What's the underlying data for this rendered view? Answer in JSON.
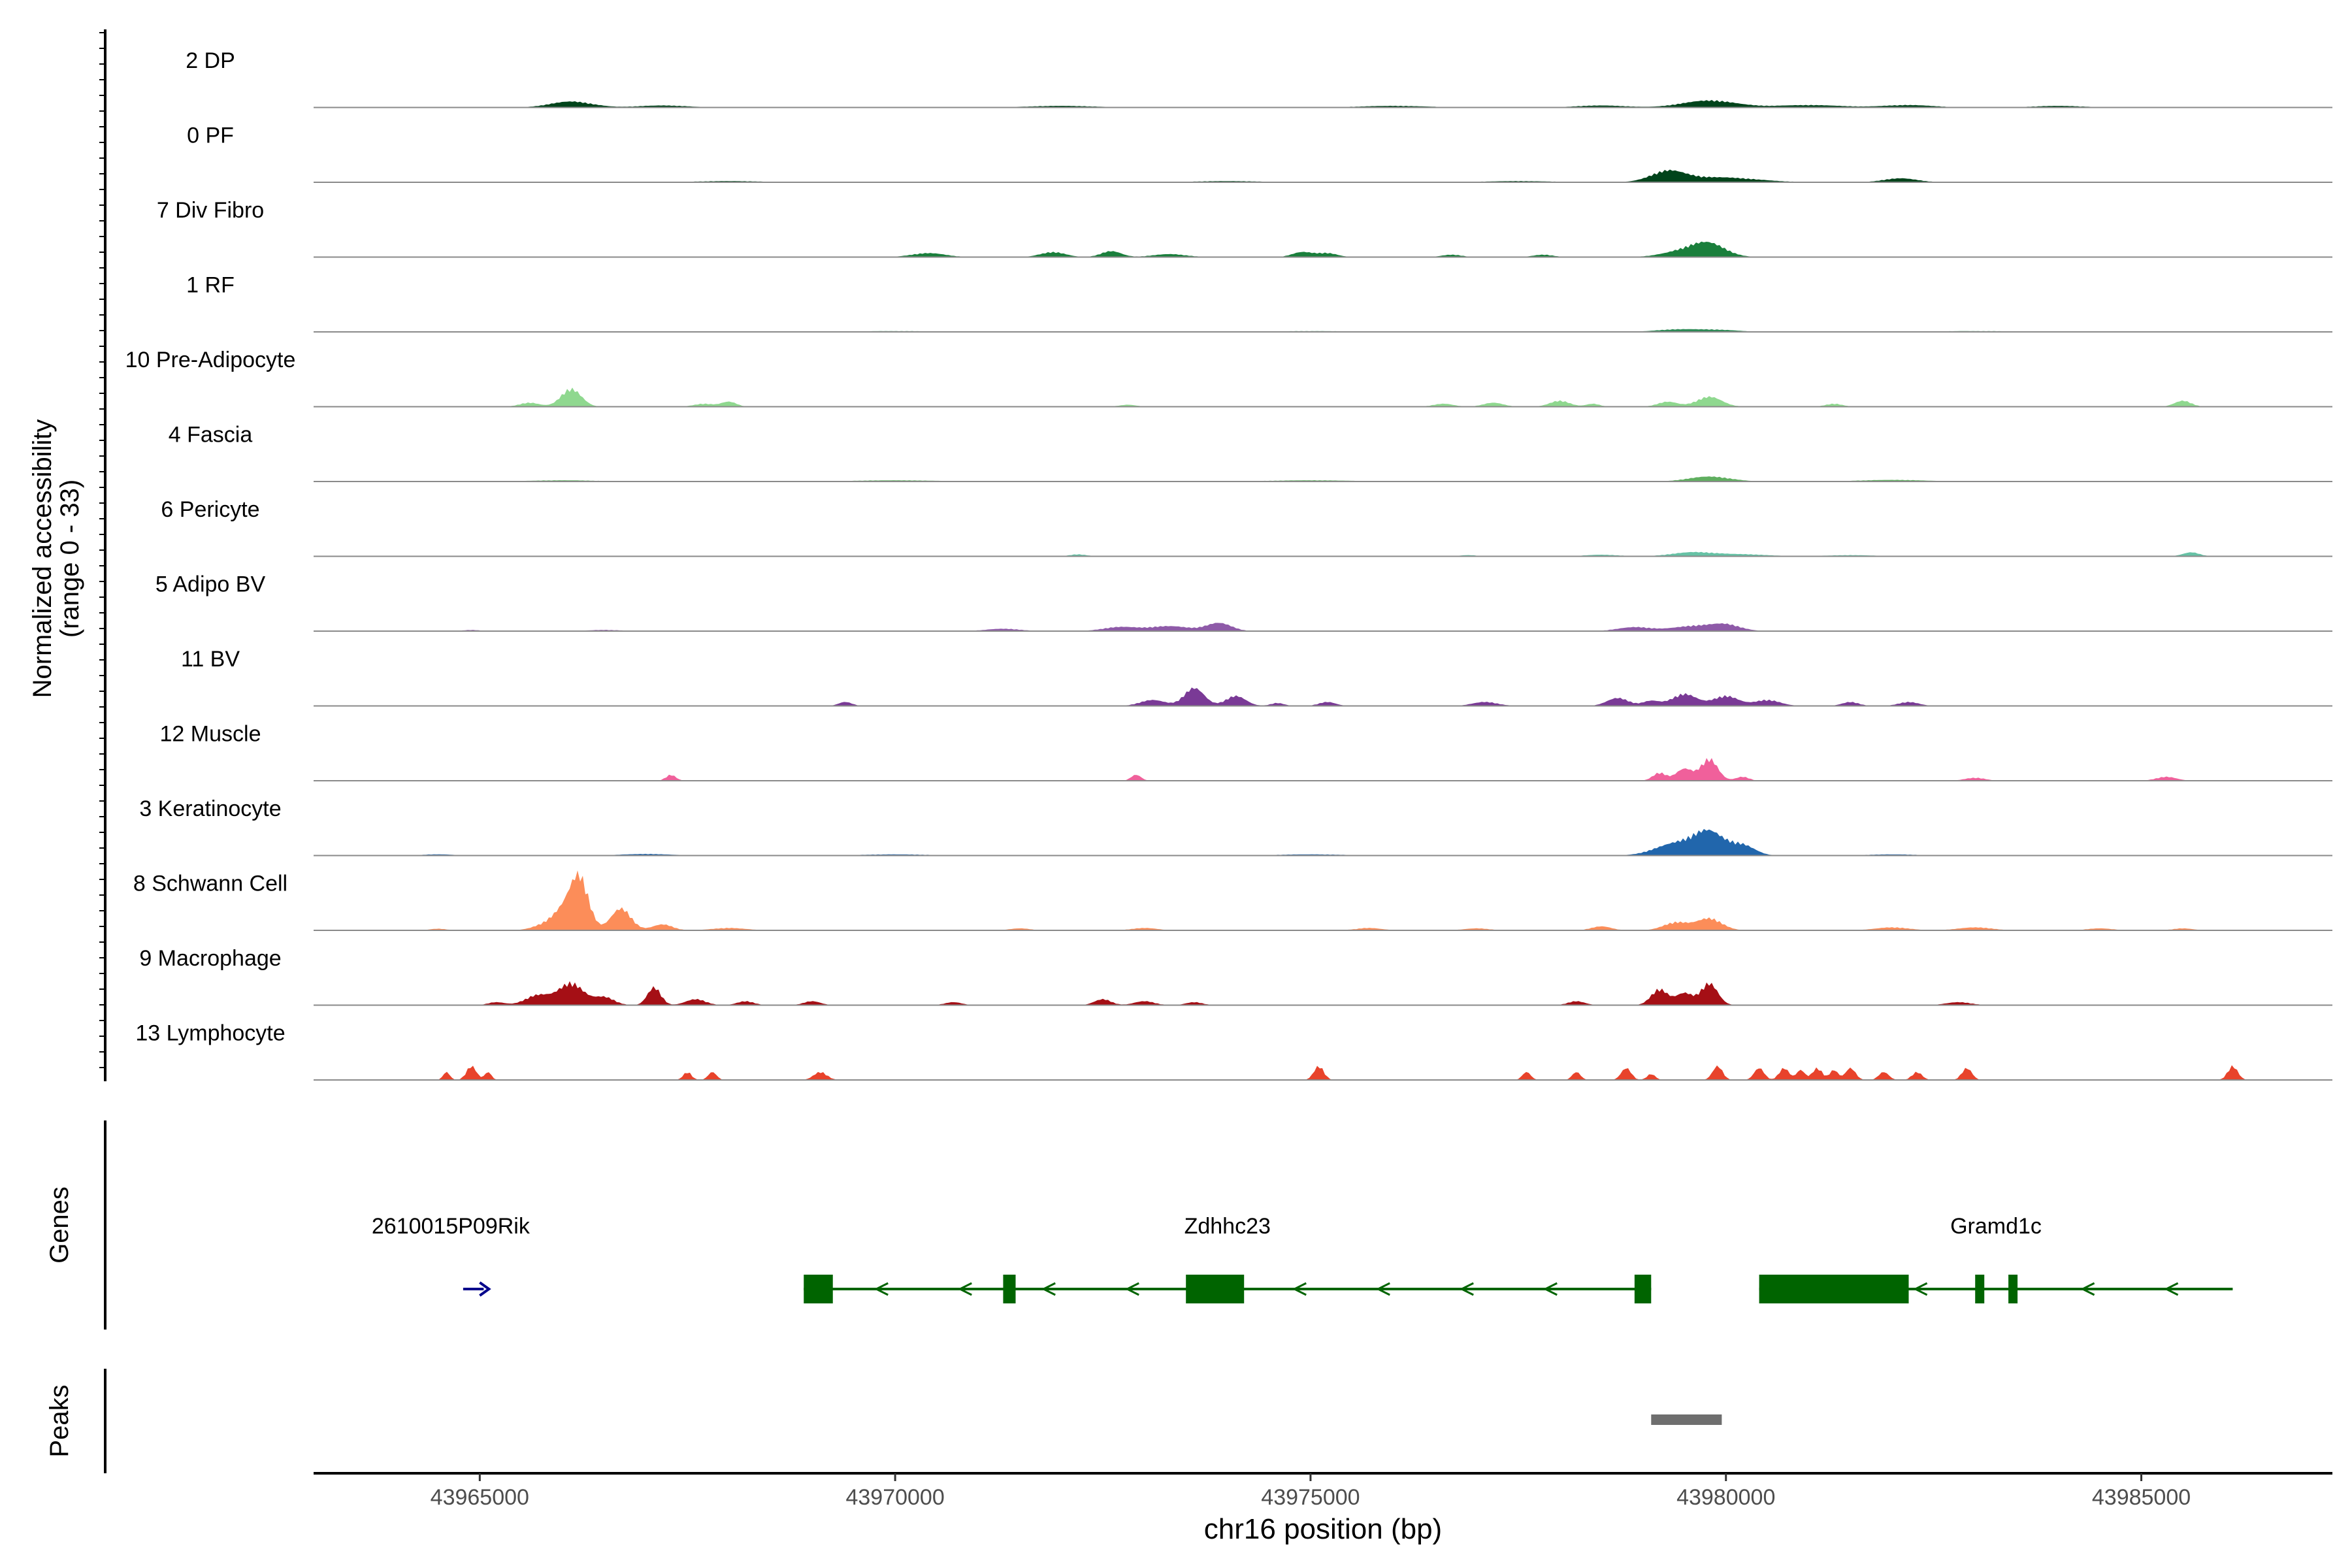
{
  "chart_data": {
    "type": "area",
    "chromosome": "chr16",
    "xlabel": "chr16 position (bp)",
    "xlim": [
      43963000,
      43987300
    ],
    "xticks": [
      43965000,
      43970000,
      43975000,
      43980000,
      43985000
    ],
    "xtick_labels": [
      "43965000",
      "43970000",
      "43975000",
      "43980000",
      "43985000"
    ],
    "ylabel_line1": "Normalized accessibility",
    "ylabel_line2": "(range 0 - 33)",
    "ylim": [
      0,
      33
    ],
    "tracks": [
      {
        "name": "2 DP",
        "color": "#00441b",
        "peaks": [
          [
            43966100,
            3,
            250
          ],
          [
            43979800,
            3.5,
            320
          ],
          [
            43967200,
            1,
            300
          ],
          [
            43972000,
            0.8,
            400
          ],
          [
            43976000,
            0.8,
            400
          ],
          [
            43978500,
            1,
            300
          ],
          [
            43981000,
            1.2,
            400
          ],
          [
            43982200,
            1.2,
            300
          ],
          [
            43984000,
            0.8,
            300
          ]
        ]
      },
      {
        "name": "0 PF",
        "color": "#00441b",
        "peaks": [
          [
            43979300,
            5,
            200
          ],
          [
            43979900,
            2.5,
            450
          ],
          [
            43982100,
            2,
            200
          ],
          [
            43968000,
            0.6,
            400
          ],
          [
            43974000,
            0.6,
            400
          ],
          [
            43977500,
            0.6,
            400
          ]
        ]
      },
      {
        "name": "7 Div Fibro",
        "color": "#1a7f3c",
        "peaks": [
          [
            43979800,
            6,
            200
          ],
          [
            43979500,
            3,
            250
          ],
          [
            43972600,
            3,
            120
          ],
          [
            43971900,
            2.5,
            150
          ],
          [
            43974900,
            2.5,
            120
          ],
          [
            43975200,
            2,
            120
          ],
          [
            43970400,
            2,
            200
          ],
          [
            43973300,
            1.5,
            200
          ],
          [
            43976700,
            1.2,
            120
          ],
          [
            43977800,
            1.2,
            120
          ]
        ]
      },
      {
        "name": "1 RF",
        "color": "#2e8b57",
        "peaks": [
          [
            43979400,
            1.2,
            250
          ],
          [
            43979900,
            1,
            250
          ],
          [
            43970000,
            0.4,
            500
          ],
          [
            43975000,
            0.4,
            500
          ],
          [
            43983000,
            0.4,
            500
          ]
        ]
      },
      {
        "name": "10 Pre-Adipocyte",
        "color": "#8fd88f",
        "peaks": [
          [
            43966100,
            9,
            120
          ],
          [
            43965600,
            2,
            120
          ],
          [
            43968000,
            2.5,
            90
          ],
          [
            43967700,
            1.5,
            120
          ],
          [
            43979800,
            5,
            150
          ],
          [
            43978000,
            3,
            120
          ],
          [
            43979300,
            2.5,
            120
          ],
          [
            43977200,
            2,
            120
          ],
          [
            43976600,
            1.5,
            120
          ],
          [
            43981300,
            1.5,
            100
          ],
          [
            43985500,
            3,
            100
          ],
          [
            43978400,
            1.5,
            80
          ],
          [
            43972800,
            1,
            100
          ]
        ]
      },
      {
        "name": "4 Fascia",
        "color": "#5fae5f",
        "peaks": [
          [
            43979800,
            2.5,
            250
          ],
          [
            43970000,
            0.6,
            500
          ],
          [
            43975000,
            0.6,
            500
          ],
          [
            43966000,
            0.6,
            400
          ],
          [
            43982000,
            0.8,
            400
          ]
        ]
      },
      {
        "name": "6 Pericyte",
        "color": "#66c2a5",
        "peaks": [
          [
            43979600,
            2,
            250
          ],
          [
            43980200,
            1,
            300
          ],
          [
            43985600,
            2,
            100
          ],
          [
            43972200,
            1,
            100
          ],
          [
            43978500,
            0.8,
            200
          ],
          [
            43981500,
            0.6,
            300
          ],
          [
            43976900,
            0.6,
            100
          ]
        ]
      },
      {
        "name": "5 Adipo BV",
        "color": "#8e5aa8",
        "peaks": [
          [
            43973900,
            4,
            150
          ],
          [
            43973300,
            2.5,
            250
          ],
          [
            43972700,
            2,
            200
          ],
          [
            43979600,
            2.5,
            250
          ],
          [
            43980000,
            3,
            180
          ],
          [
            43978900,
            2,
            200
          ],
          [
            43971300,
            1.2,
            200
          ],
          [
            43966500,
            0.6,
            200
          ],
          [
            43964900,
            0.6,
            100
          ]
        ]
      },
      {
        "name": "11 BV",
        "color": "#7a3a96",
        "peaks": [
          [
            43973600,
            9,
            120
          ],
          [
            43974100,
            5,
            120
          ],
          [
            43973100,
            3,
            150
          ],
          [
            43979500,
            6,
            150
          ],
          [
            43980000,
            5,
            150
          ],
          [
            43978700,
            4,
            130
          ],
          [
            43980500,
            3,
            150
          ],
          [
            43979100,
            2.5,
            100
          ],
          [
            43977100,
            2,
            150
          ],
          [
            43975200,
            2,
            100
          ],
          [
            43969400,
            2,
            80
          ],
          [
            43981500,
            2,
            100
          ],
          [
            43982200,
            2,
            120
          ],
          [
            43974600,
            1.5,
            80
          ]
        ]
      },
      {
        "name": "12 Muscle",
        "color": "#f0609b",
        "peaks": [
          [
            43979800,
            11,
            100
          ],
          [
            43979500,
            6,
            100
          ],
          [
            43979200,
            4,
            80
          ],
          [
            43967300,
            3,
            60
          ],
          [
            43972900,
            3,
            60
          ],
          [
            43985300,
            2,
            120
          ],
          [
            43983000,
            1.5,
            120
          ],
          [
            43980200,
            2,
            80
          ]
        ]
      },
      {
        "name": "3 Keratinocyte",
        "color": "#2166ac",
        "peaks": [
          [
            43979800,
            11,
            180
          ],
          [
            43979400,
            6,
            250
          ],
          [
            43980200,
            5,
            150
          ],
          [
            43967000,
            0.8,
            300
          ],
          [
            43970000,
            0.6,
            400
          ],
          [
            43975000,
            0.6,
            400
          ],
          [
            43964500,
            0.6,
            200
          ],
          [
            43982000,
            0.6,
            300
          ]
        ]
      },
      {
        "name": "8 Schwann Cell",
        "color": "#fc8d59",
        "peaks": [
          [
            43966200,
            26,
            110
          ],
          [
            43966000,
            8,
            120
          ],
          [
            43966700,
            11,
            120
          ],
          [
            43965800,
            3,
            150
          ],
          [
            43967200,
            3,
            120
          ],
          [
            43979800,
            6,
            150
          ],
          [
            43979400,
            4,
            150
          ],
          [
            43978500,
            2,
            120
          ],
          [
            43982000,
            1.5,
            200
          ],
          [
            43983000,
            1.5,
            200
          ],
          [
            43968000,
            1.2,
            200
          ],
          [
            43973000,
            1.2,
            150
          ],
          [
            43975700,
            1.2,
            150
          ],
          [
            43977000,
            1,
            150
          ],
          [
            43985500,
            1,
            120
          ],
          [
            43971500,
            1,
            120
          ],
          [
            43984500,
            1,
            150
          ],
          [
            43964500,
            0.8,
            100
          ]
        ]
      },
      {
        "name": "9 Macrophage",
        "color": "#a50f15",
        "peaks": [
          [
            43966100,
            11,
            150
          ],
          [
            43965700,
            5,
            150
          ],
          [
            43966500,
            4,
            120
          ],
          [
            43967100,
            9,
            80
          ],
          [
            43979800,
            11,
            100
          ],
          [
            43979200,
            8,
            100
          ],
          [
            43979500,
            6,
            100
          ],
          [
            43967600,
            3,
            120
          ],
          [
            43968200,
            2,
            100
          ],
          [
            43969000,
            2,
            100
          ],
          [
            43972500,
            3,
            100
          ],
          [
            43973000,
            2,
            120
          ],
          [
            43978200,
            2,
            100
          ],
          [
            43982800,
            1.5,
            150
          ],
          [
            43965200,
            1.5,
            100
          ],
          [
            43970700,
            1.5,
            100
          ],
          [
            43973600,
            1.5,
            100
          ]
        ]
      },
      {
        "name": "13 Lymphocyte",
        "color": "#e8432b",
        "peaks": [
          [
            43964900,
            7,
            60
          ],
          [
            43964600,
            4,
            40
          ],
          [
            43965100,
            4,
            40
          ],
          [
            43975100,
            7,
            60
          ],
          [
            43978800,
            6,
            60
          ],
          [
            43979900,
            7,
            60
          ],
          [
            43980400,
            6,
            60
          ],
          [
            43980700,
            6,
            60
          ],
          [
            43981100,
            6,
            60
          ],
          [
            43981500,
            6,
            60
          ],
          [
            43982900,
            6,
            60
          ],
          [
            43986100,
            7,
            60
          ],
          [
            43967500,
            4,
            50
          ],
          [
            43967800,
            4,
            50
          ],
          [
            43969100,
            4,
            80
          ],
          [
            43977600,
            4,
            50
          ],
          [
            43978200,
            4,
            50
          ],
          [
            43981900,
            4,
            60
          ],
          [
            43982300,
            4,
            60
          ],
          [
            43979100,
            3,
            50
          ],
          [
            43980900,
            5,
            50
          ],
          [
            43981300,
            5,
            50
          ]
        ]
      }
    ],
    "genes": [
      {
        "name": "2610015P09Rik",
        "strand": "+",
        "color": "#00008b",
        "start": 43964800,
        "end": 43965000
      },
      {
        "name": "Zdhhc23",
        "strand": "-",
        "color": "#006400",
        "start": 43968900,
        "end": 43979100,
        "exons": [
          [
            43968900,
            43969250
          ],
          [
            43971300,
            43971450
          ],
          [
            43973500,
            43974200
          ],
          [
            43978900,
            43979100
          ]
        ]
      },
      {
        "name": "Gramd1c",
        "strand": "-",
        "color": "#006400",
        "start": 43980400,
        "end": 43986100,
        "exons": [
          [
            43980400,
            43982200
          ],
          [
            43983000,
            43983100
          ],
          [
            43983400,
            43983500
          ]
        ]
      }
    ],
    "gene_track_label": "Genes",
    "peaks_track_label": "Peaks",
    "peak_regions": [
      [
        43979100,
        43979950
      ]
    ],
    "peak_color": "#6e6e6e"
  }
}
